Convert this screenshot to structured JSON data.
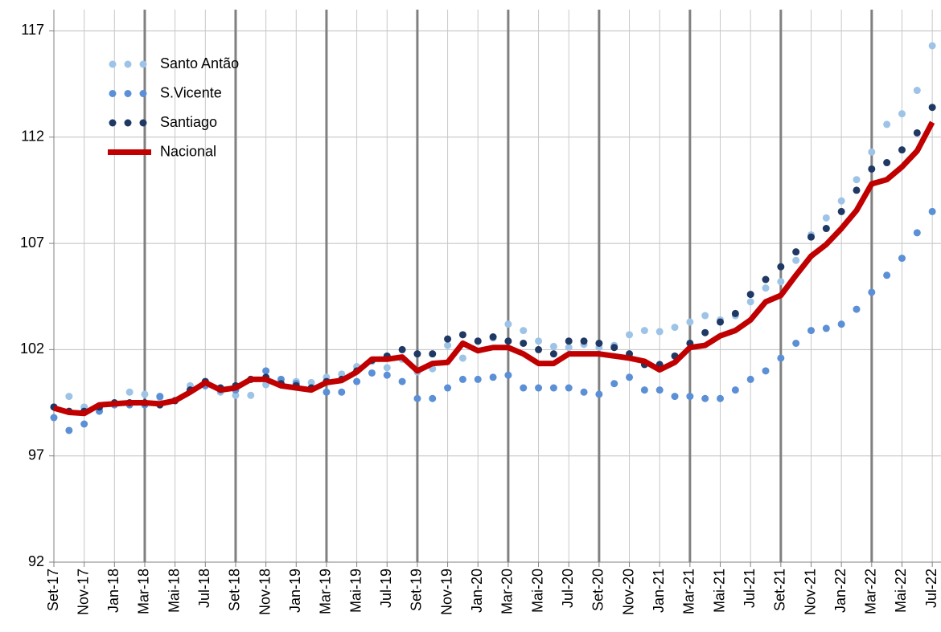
{
  "chart_data": {
    "type": "line",
    "categories": [
      "Set-17",
      null,
      "Nov-17",
      null,
      "Jan-18",
      null,
      "Mar-18",
      null,
      "Mai-18",
      null,
      "Jul-18",
      null,
      "Set-18",
      null,
      "Nov-18",
      null,
      "Jan-19",
      null,
      "Mar-19",
      null,
      "Mai-19",
      null,
      "Jul-19",
      null,
      "Set-19",
      null,
      "Nov-19",
      null,
      "Jan-20",
      null,
      "Mar-20",
      null,
      "Mai-20",
      null,
      "Jul-20",
      null,
      "Set-20",
      null,
      "Nov-20",
      null,
      "Jan-21",
      null,
      "Mar-21",
      null,
      "Mai-21",
      null,
      "Jul-21",
      null,
      "Set-21",
      null,
      "Nov-21",
      null,
      "Jan-22",
      null,
      "Mar-22",
      null,
      "Mai-22",
      null,
      "Jul-22"
    ],
    "series": [
      {
        "name": "Santo Antão",
        "color": "#9dc3e6",
        "style": "dots",
        "values": [
          99.3,
          99.8,
          99.3,
          99.2,
          99.45,
          100.0,
          99.9,
          99.75,
          99.6,
          100.3,
          100.5,
          100.0,
          99.85,
          99.85,
          100.35,
          100.6,
          100.5,
          100.45,
          100.7,
          100.85,
          101.2,
          101.45,
          101.15,
          101.55,
          100.95,
          101.1,
          102.2,
          101.6,
          102.4,
          102.55,
          103.2,
          102.9,
          102.4,
          102.15,
          102.1,
          102.25,
          102.1,
          102.2,
          102.7,
          102.9,
          102.85,
          103.05,
          103.3,
          103.6,
          103.4,
          103.6,
          104.25,
          104.9,
          105.2,
          106.2,
          107.4,
          108.2,
          109.0,
          110.0,
          111.3,
          112.6,
          113.1,
          114.2,
          116.3
        ]
      },
      {
        "name": "S.Vicente",
        "color": "#5b8fd6",
        "style": "dots",
        "values": [
          98.8,
          98.2,
          98.5,
          99.1,
          99.4,
          99.4,
          99.4,
          99.8,
          99.6,
          100.1,
          100.3,
          100.1,
          100.1,
          100.6,
          101.0,
          100.6,
          100.4,
          100.2,
          100.0,
          100.0,
          100.5,
          100.9,
          100.8,
          100.5,
          99.7,
          99.7,
          100.2,
          100.6,
          100.6,
          100.7,
          100.8,
          100.2,
          100.2,
          100.2,
          100.2,
          100.0,
          99.9,
          100.4,
          100.7,
          100.1,
          100.1,
          99.8,
          99.8,
          99.7,
          99.7,
          100.1,
          100.6,
          101.0,
          101.6,
          102.3,
          102.9,
          103.0,
          103.2,
          103.9,
          104.7,
          105.5,
          106.3,
          107.5,
          108.5
        ]
      },
      {
        "name": "Santiago",
        "color": "#1f3864",
        "style": "dots",
        "values": [
          99.3,
          99.1,
          99.1,
          99.3,
          99.5,
          99.5,
          99.5,
          99.4,
          99.6,
          100.1,
          100.5,
          100.2,
          100.3,
          100.6,
          100.7,
          100.4,
          100.3,
          100.2,
          100.5,
          100.6,
          101.0,
          101.5,
          101.7,
          102.0,
          101.8,
          101.8,
          102.5,
          102.7,
          102.4,
          102.6,
          102.4,
          102.3,
          102.0,
          101.8,
          102.4,
          102.4,
          102.3,
          102.1,
          101.8,
          101.3,
          101.3,
          101.7,
          102.3,
          102.8,
          103.3,
          103.7,
          104.6,
          105.3,
          105.9,
          106.6,
          107.3,
          107.7,
          108.5,
          109.5,
          110.5,
          110.8,
          111.4,
          112.2,
          113.4
        ]
      },
      {
        "name": "Nacional",
        "color": "#c00000",
        "style": "line",
        "values": [
          99.25,
          99.05,
          99.0,
          99.4,
          99.45,
          99.5,
          99.5,
          99.45,
          99.6,
          100.0,
          100.45,
          100.1,
          100.2,
          100.6,
          100.6,
          100.3,
          100.2,
          100.1,
          100.45,
          100.55,
          100.95,
          101.55,
          101.55,
          101.65,
          101.0,
          101.35,
          101.4,
          102.3,
          101.95,
          102.1,
          102.1,
          101.8,
          101.35,
          101.35,
          101.8,
          101.8,
          101.8,
          101.7,
          101.6,
          101.45,
          101.05,
          101.4,
          102.1,
          102.2,
          102.65,
          102.9,
          103.4,
          104.25,
          104.55,
          105.5,
          106.4,
          106.95,
          107.7,
          108.55,
          109.8,
          110.0,
          110.6,
          111.35,
          112.7
        ]
      }
    ],
    "ylim": [
      92,
      118
    ],
    "yticks": [
      92,
      97,
      102,
      107,
      112,
      117
    ],
    "grid": true,
    "legend": "upper-left"
  }
}
